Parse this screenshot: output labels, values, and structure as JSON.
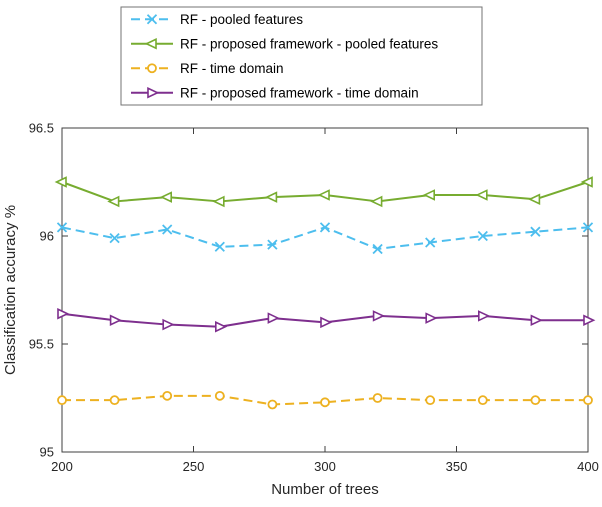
{
  "figure": {
    "background": "#ffffff",
    "axis_color": "#3f3f3f",
    "text_color": "#262626",
    "legend_border_color": "#737373"
  },
  "chart_data": {
    "type": "line",
    "title": "",
    "xlabel": "Number of trees",
    "ylabel": "Classification accuracy %",
    "xlim": [
      200,
      400
    ],
    "ylim": [
      95,
      96.5
    ],
    "x_ticks": [
      200,
      250,
      300,
      350,
      400
    ],
    "y_ticks": [
      95,
      95.5,
      96,
      96.5
    ],
    "y_tick_labels": [
      "95",
      "95.5",
      "96",
      "96.5"
    ],
    "grid": false,
    "legend_position": "top-outside",
    "x": [
      200,
      220,
      240,
      260,
      280,
      300,
      320,
      340,
      360,
      380,
      400
    ],
    "series": [
      {
        "name": "RF - pooled features",
        "color": "#4DBEEE",
        "line_style": "dashed",
        "marker": "x",
        "values": [
          96.04,
          95.99,
          96.03,
          95.95,
          95.96,
          96.04,
          95.94,
          95.97,
          96.0,
          96.02,
          96.04
        ]
      },
      {
        "name": "RF - proposed framework - pooled features",
        "color": "#77AC30",
        "line_style": "solid",
        "marker": "<",
        "values": [
          96.25,
          96.16,
          96.18,
          96.16,
          96.18,
          96.19,
          96.16,
          96.19,
          96.19,
          96.17,
          96.25
        ]
      },
      {
        "name": "RF - time domain",
        "color": "#EDB120",
        "line_style": "dashed",
        "marker": "o",
        "values": [
          95.24,
          95.24,
          95.26,
          95.26,
          95.22,
          95.23,
          95.25,
          95.24,
          95.24,
          95.24,
          95.24
        ]
      },
      {
        "name": "RF - proposed framework - time domain",
        "color": "#7E2F8E",
        "line_style": "solid",
        "marker": ">",
        "values": [
          95.64,
          95.61,
          95.59,
          95.58,
          95.62,
          95.6,
          95.63,
          95.62,
          95.63,
          95.61,
          95.61
        ]
      }
    ]
  }
}
